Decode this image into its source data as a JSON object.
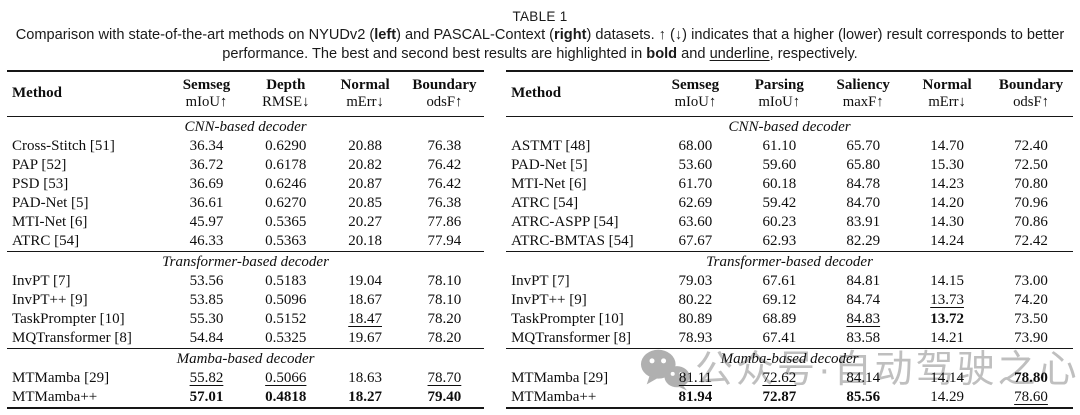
{
  "header": {
    "title": "TABLE 1",
    "caption": [
      {
        "t": "Comparison with state-of-the-art methods on NYUDv2 (",
        "s": ""
      },
      {
        "t": "left",
        "s": "b"
      },
      {
        "t": ") and PASCAL-Context (",
        "s": ""
      },
      {
        "t": "right",
        "s": "b"
      },
      {
        "t": ") datasets. ↑ (↓) indicates that a higher (lower) result corresponds to better performance. The best and second best results are highlighted in ",
        "s": ""
      },
      {
        "t": "bold",
        "s": "b"
      },
      {
        "t": " and ",
        "s": ""
      },
      {
        "t": "underline",
        "s": "u"
      },
      {
        "t": ", respectively.",
        "s": ""
      }
    ]
  },
  "tables": [
    {
      "id": "nyudv2",
      "columns": [
        {
          "top": "Method",
          "bottom": ""
        },
        {
          "top": "Semseg",
          "bottom": "mIoU↑"
        },
        {
          "top": "Depth",
          "bottom": "RMSE↓"
        },
        {
          "top": "Normal",
          "bottom": "mErr↓"
        },
        {
          "top": "Boundary",
          "bottom": "odsF↑"
        }
      ],
      "sections": [
        {
          "label": "CNN-based decoder",
          "rows": [
            {
              "method": "Cross-Stitch [51]",
              "cells": [
                {
                  "v": "36.34",
                  "s": ""
                },
                {
                  "v": "0.6290",
                  "s": ""
                },
                {
                  "v": "20.88",
                  "s": ""
                },
                {
                  "v": "76.38",
                  "s": ""
                }
              ]
            },
            {
              "method": "PAP [52]",
              "cells": [
                {
                  "v": "36.72",
                  "s": ""
                },
                {
                  "v": "0.6178",
                  "s": ""
                },
                {
                  "v": "20.82",
                  "s": ""
                },
                {
                  "v": "76.42",
                  "s": ""
                }
              ]
            },
            {
              "method": "PSD [53]",
              "cells": [
                {
                  "v": "36.69",
                  "s": ""
                },
                {
                  "v": "0.6246",
                  "s": ""
                },
                {
                  "v": "20.87",
                  "s": ""
                },
                {
                  "v": "76.42",
                  "s": ""
                }
              ]
            },
            {
              "method": "PAD-Net [5]",
              "cells": [
                {
                  "v": "36.61",
                  "s": ""
                },
                {
                  "v": "0.6270",
                  "s": ""
                },
                {
                  "v": "20.85",
                  "s": ""
                },
                {
                  "v": "76.38",
                  "s": ""
                }
              ]
            },
            {
              "method": "MTI-Net [6]",
              "cells": [
                {
                  "v": "45.97",
                  "s": ""
                },
                {
                  "v": "0.5365",
                  "s": ""
                },
                {
                  "v": "20.27",
                  "s": ""
                },
                {
                  "v": "77.86",
                  "s": ""
                }
              ]
            },
            {
              "method": "ATRC [54]",
              "cells": [
                {
                  "v": "46.33",
                  "s": ""
                },
                {
                  "v": "0.5363",
                  "s": ""
                },
                {
                  "v": "20.18",
                  "s": ""
                },
                {
                  "v": "77.94",
                  "s": ""
                }
              ]
            }
          ]
        },
        {
          "label": "Transformer-based decoder",
          "rows": [
            {
              "method": "InvPT [7]",
              "cells": [
                {
                  "v": "53.56",
                  "s": ""
                },
                {
                  "v": "0.5183",
                  "s": ""
                },
                {
                  "v": "19.04",
                  "s": ""
                },
                {
                  "v": "78.10",
                  "s": ""
                }
              ]
            },
            {
              "method": "InvPT++ [9]",
              "cells": [
                {
                  "v": "53.85",
                  "s": ""
                },
                {
                  "v": "0.5096",
                  "s": ""
                },
                {
                  "v": "18.67",
                  "s": ""
                },
                {
                  "v": "78.10",
                  "s": ""
                }
              ]
            },
            {
              "method": "TaskPrompter [10]",
              "cells": [
                {
                  "v": "55.30",
                  "s": ""
                },
                {
                  "v": "0.5152",
                  "s": ""
                },
                {
                  "v": "18.47",
                  "s": "u"
                },
                {
                  "v": "78.20",
                  "s": ""
                }
              ]
            },
            {
              "method": "MQTransformer [8]",
              "cells": [
                {
                  "v": "54.84",
                  "s": ""
                },
                {
                  "v": "0.5325",
                  "s": ""
                },
                {
                  "v": "19.67",
                  "s": ""
                },
                {
                  "v": "78.20",
                  "s": ""
                }
              ]
            }
          ]
        },
        {
          "label": "Mamba-based decoder",
          "rows": [
            {
              "method": "MTMamba [29]",
              "cells": [
                {
                  "v": "55.82",
                  "s": "u"
                },
                {
                  "v": "0.5066",
                  "s": "u"
                },
                {
                  "v": "18.63",
                  "s": ""
                },
                {
                  "v": "78.70",
                  "s": "u"
                }
              ]
            },
            {
              "method": "MTMamba++",
              "cells": [
                {
                  "v": "57.01",
                  "s": "b"
                },
                {
                  "v": "0.4818",
                  "s": "b"
                },
                {
                  "v": "18.27",
                  "s": "b"
                },
                {
                  "v": "79.40",
                  "s": "b"
                }
              ]
            }
          ]
        }
      ]
    },
    {
      "id": "pascal-context",
      "columns": [
        {
          "top": "Method",
          "bottom": ""
        },
        {
          "top": "Semseg",
          "bottom": "mIoU↑"
        },
        {
          "top": "Parsing",
          "bottom": "mIoU↑"
        },
        {
          "top": "Saliency",
          "bottom": "maxF↑"
        },
        {
          "top": "Normal",
          "bottom": "mErr↓"
        },
        {
          "top": "Boundary",
          "bottom": "odsF↑"
        }
      ],
      "sections": [
        {
          "label": "CNN-based decoder",
          "rows": [
            {
              "method": "ASTMT [48]",
              "cells": [
                {
                  "v": "68.00",
                  "s": ""
                },
                {
                  "v": "61.10",
                  "s": ""
                },
                {
                  "v": "65.70",
                  "s": ""
                },
                {
                  "v": "14.70",
                  "s": ""
                },
                {
                  "v": "72.40",
                  "s": ""
                }
              ]
            },
            {
              "method": "PAD-Net [5]",
              "cells": [
                {
                  "v": "53.60",
                  "s": ""
                },
                {
                  "v": "59.60",
                  "s": ""
                },
                {
                  "v": "65.80",
                  "s": ""
                },
                {
                  "v": "15.30",
                  "s": ""
                },
                {
                  "v": "72.50",
                  "s": ""
                }
              ]
            },
            {
              "method": "MTI-Net [6]",
              "cells": [
                {
                  "v": "61.70",
                  "s": ""
                },
                {
                  "v": "60.18",
                  "s": ""
                },
                {
                  "v": "84.78",
                  "s": ""
                },
                {
                  "v": "14.23",
                  "s": ""
                },
                {
                  "v": "70.80",
                  "s": ""
                }
              ]
            },
            {
              "method": "ATRC [54]",
              "cells": [
                {
                  "v": "62.69",
                  "s": ""
                },
                {
                  "v": "59.42",
                  "s": ""
                },
                {
                  "v": "84.70",
                  "s": ""
                },
                {
                  "v": "14.20",
                  "s": ""
                },
                {
                  "v": "70.96",
                  "s": ""
                }
              ]
            },
            {
              "method": "ATRC-ASPP [54]",
              "cells": [
                {
                  "v": "63.60",
                  "s": ""
                },
                {
                  "v": "60.23",
                  "s": ""
                },
                {
                  "v": "83.91",
                  "s": ""
                },
                {
                  "v": "14.30",
                  "s": ""
                },
                {
                  "v": "70.86",
                  "s": ""
                }
              ]
            },
            {
              "method": "ATRC-BMTAS [54]",
              "cells": [
                {
                  "v": "67.67",
                  "s": ""
                },
                {
                  "v": "62.93",
                  "s": ""
                },
                {
                  "v": "82.29",
                  "s": ""
                },
                {
                  "v": "14.24",
                  "s": ""
                },
                {
                  "v": "72.42",
                  "s": ""
                }
              ]
            }
          ]
        },
        {
          "label": "Transformer-based decoder",
          "rows": [
            {
              "method": "InvPT [7]",
              "cells": [
                {
                  "v": "79.03",
                  "s": ""
                },
                {
                  "v": "67.61",
                  "s": ""
                },
                {
                  "v": "84.81",
                  "s": ""
                },
                {
                  "v": "14.15",
                  "s": ""
                },
                {
                  "v": "73.00",
                  "s": ""
                }
              ]
            },
            {
              "method": "InvPT++ [9]",
              "cells": [
                {
                  "v": "80.22",
                  "s": ""
                },
                {
                  "v": "69.12",
                  "s": ""
                },
                {
                  "v": "84.74",
                  "s": ""
                },
                {
                  "v": "13.73",
                  "s": "u"
                },
                {
                  "v": "74.20",
                  "s": ""
                }
              ]
            },
            {
              "method": "TaskPrompter [10]",
              "cells": [
                {
                  "v": "80.89",
                  "s": ""
                },
                {
                  "v": "68.89",
                  "s": ""
                },
                {
                  "v": "84.83",
                  "s": "u"
                },
                {
                  "v": "13.72",
                  "s": "b"
                },
                {
                  "v": "73.50",
                  "s": ""
                }
              ]
            },
            {
              "method": "MQTransformer [8]",
              "cells": [
                {
                  "v": "78.93",
                  "s": ""
                },
                {
                  "v": "67.41",
                  "s": ""
                },
                {
                  "v": "83.58",
                  "s": ""
                },
                {
                  "v": "14.21",
                  "s": ""
                },
                {
                  "v": "73.90",
                  "s": ""
                }
              ]
            }
          ]
        },
        {
          "label": "Mamba-based decoder",
          "rows": [
            {
              "method": "MTMamba [29]",
              "cells": [
                {
                  "v": "81.11",
                  "s": "u"
                },
                {
                  "v": "72.62",
                  "s": "u"
                },
                {
                  "v": "84.14",
                  "s": ""
                },
                {
                  "v": "14.14",
                  "s": ""
                },
                {
                  "v": "78.80",
                  "s": "b"
                }
              ]
            },
            {
              "method": "MTMamba++",
              "cells": [
                {
                  "v": "81.94",
                  "s": "b"
                },
                {
                  "v": "72.87",
                  "s": "b"
                },
                {
                  "v": "85.56",
                  "s": "b"
                },
                {
                  "v": "14.29",
                  "s": ""
                },
                {
                  "v": "78.60",
                  "s": "u"
                }
              ]
            }
          ]
        }
      ]
    }
  ],
  "watermark": {
    "icon": "wechat-icon",
    "text": "公众号·自动驾驶之心",
    "icon_color": "#a3a3a3",
    "text_color": "#b4b4b4"
  }
}
